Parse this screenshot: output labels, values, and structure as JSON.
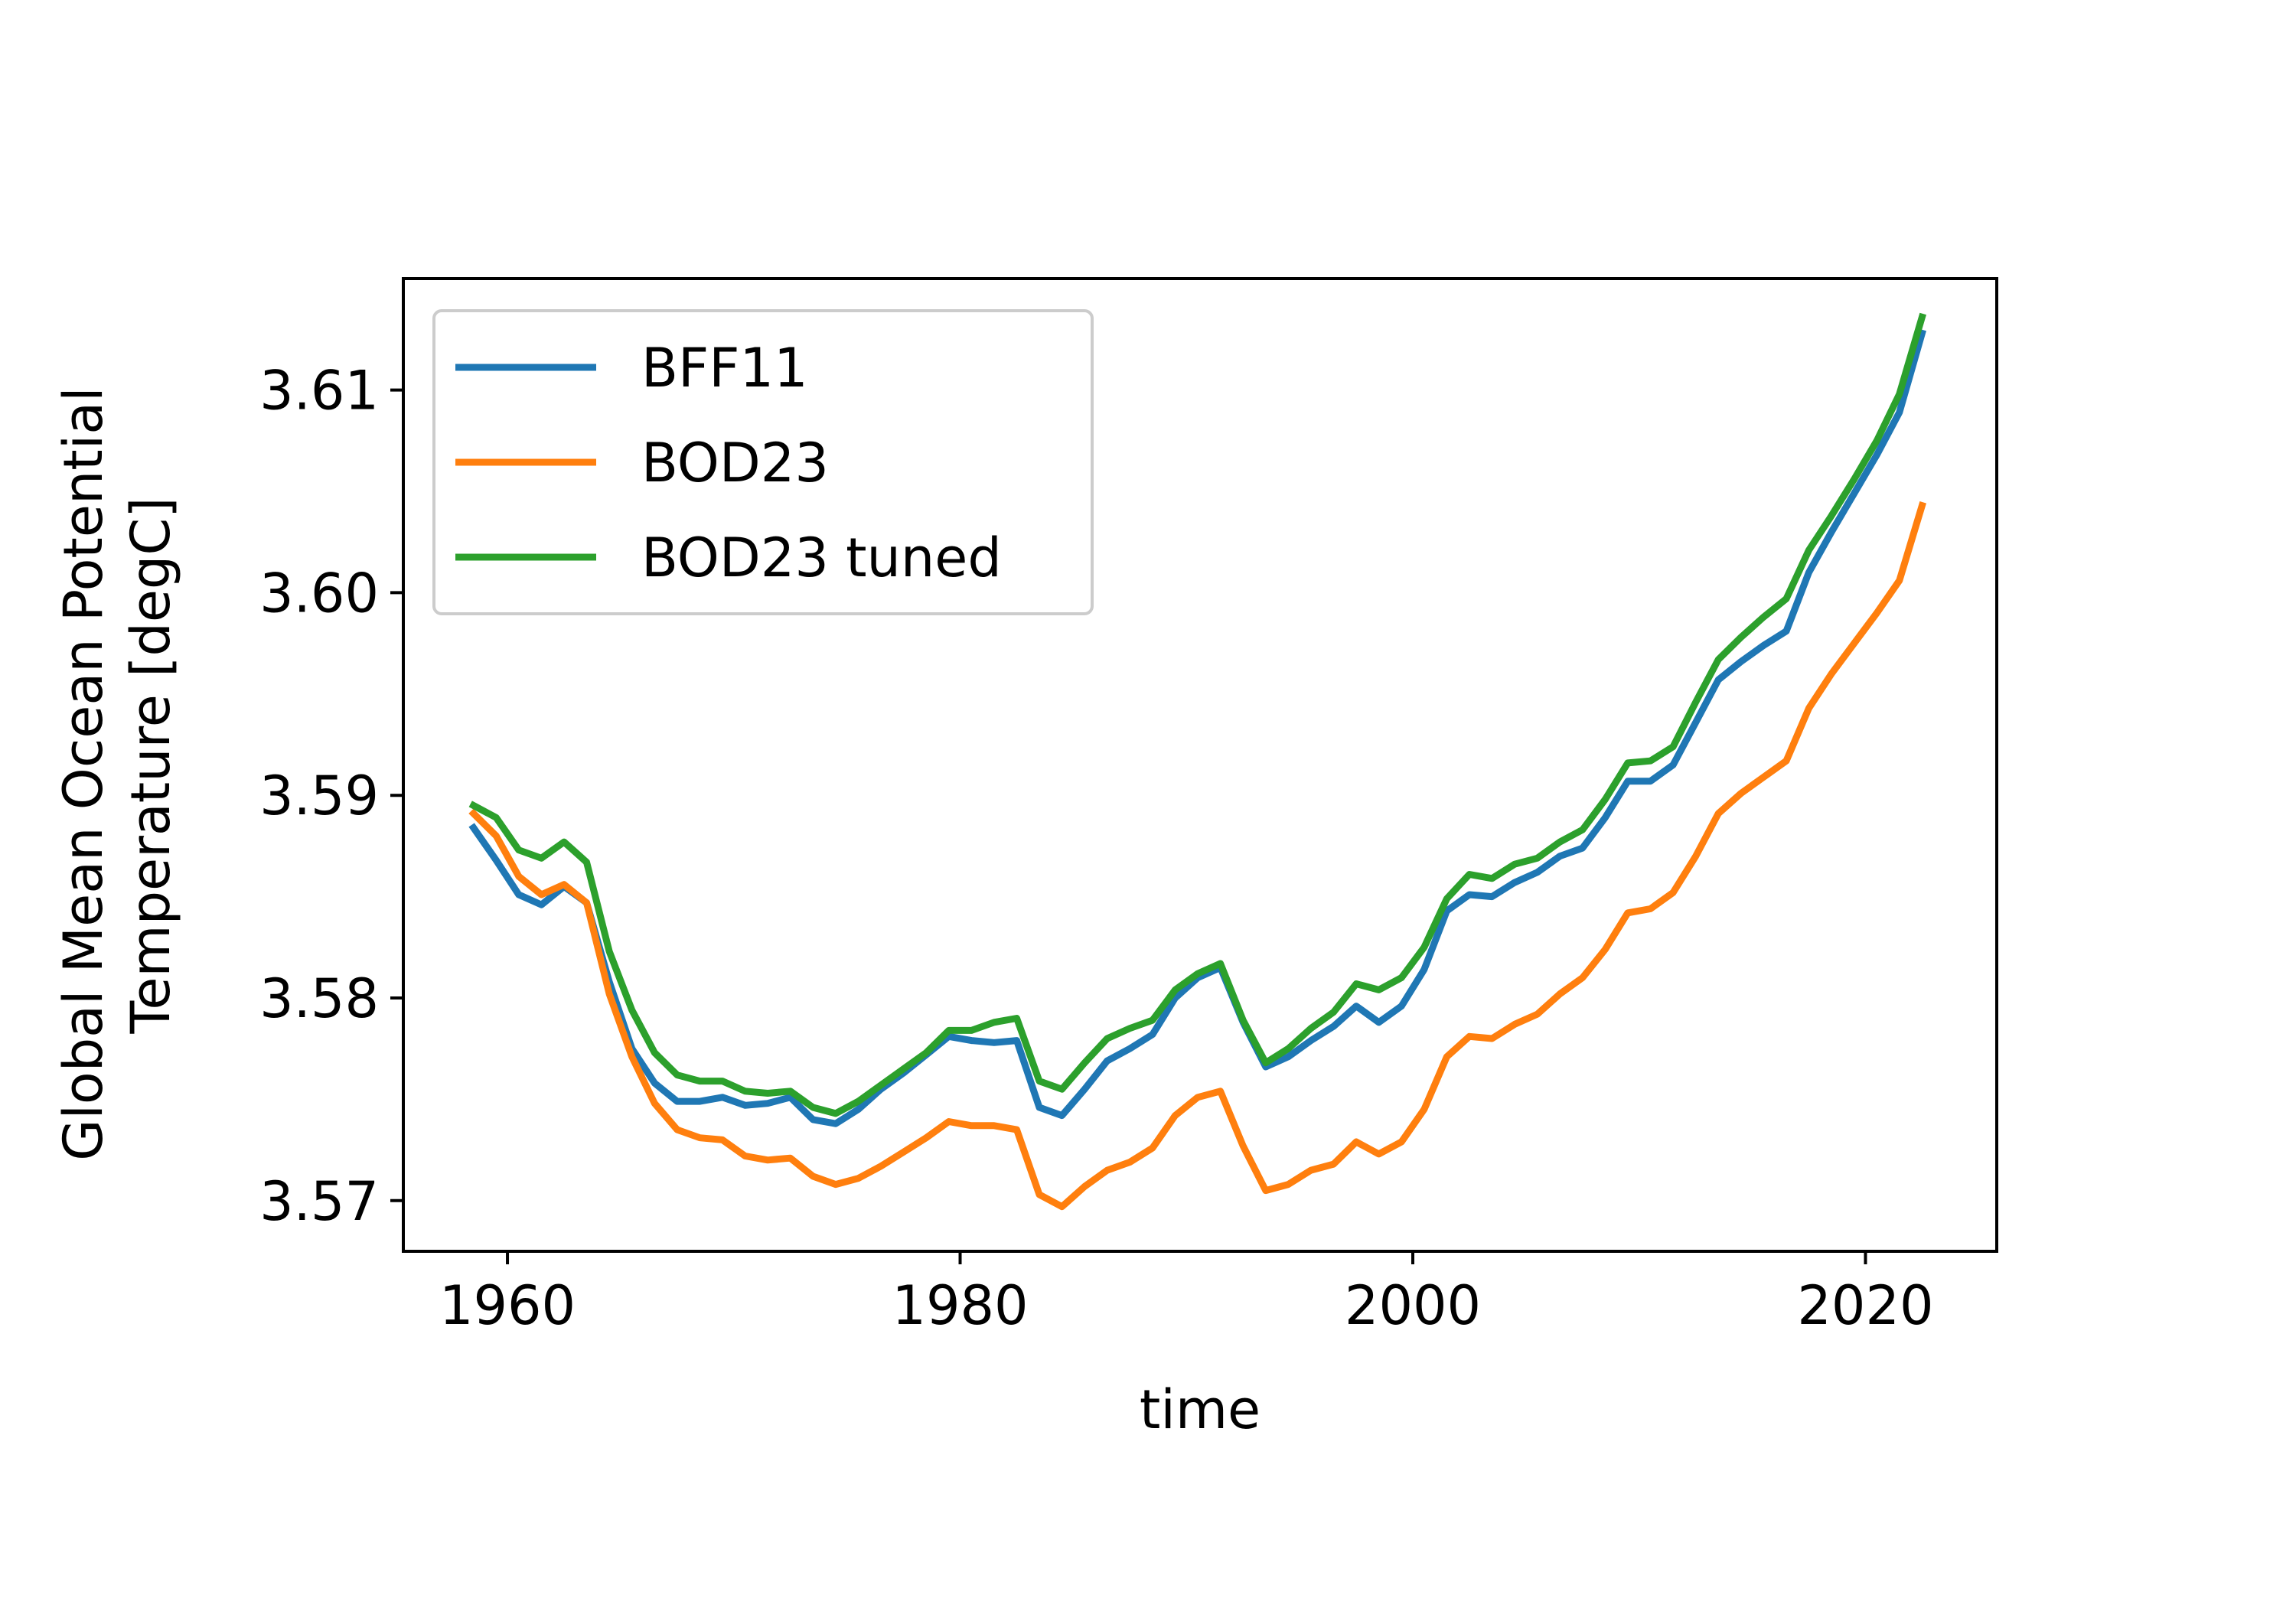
{
  "chart_data": {
    "type": "line",
    "title": "",
    "xlabel": "time",
    "ylabel_lines": [
      "Global Mean Ocean Potential",
      "Temperature [degC]"
    ],
    "xlim": [
      1955.4,
      2025.8
    ],
    "ylim": [
      3.5675,
      3.6155
    ],
    "xticks": [
      1960,
      1980,
      2000,
      2020
    ],
    "xtick_labels": [
      "1960",
      "1980",
      "2000",
      "2020"
    ],
    "yticks": [
      3.57,
      3.58,
      3.59,
      3.6,
      3.61
    ],
    "ytick_labels": [
      "3.57",
      "3.58",
      "3.59",
      "3.60",
      "3.61"
    ],
    "grid": false,
    "legend_position": "upper-left",
    "x": [
      1958.5,
      1959.5,
      1960.5,
      1961.5,
      1962.5,
      1963.5,
      1964.5,
      1965.5,
      1966.5,
      1967.5,
      1968.5,
      1969.5,
      1970.5,
      1971.5,
      1972.5,
      1973.5,
      1974.5,
      1975.5,
      1976.5,
      1977.5,
      1978.5,
      1979.5,
      1980.5,
      1981.5,
      1982.5,
      1983.5,
      1984.5,
      1985.5,
      1986.5,
      1987.5,
      1988.5,
      1989.5,
      1990.5,
      1991.5,
      1992.5,
      1993.5,
      1994.5,
      1995.5,
      1996.5,
      1997.5,
      1998.5,
      1999.5,
      2000.5,
      2001.5,
      2002.5,
      2003.5,
      2004.5,
      2005.5,
      2006.5,
      2007.5,
      2008.5,
      2009.5,
      2010.5,
      2011.5,
      2012.5,
      2013.5,
      2014.5,
      2015.5,
      2016.5,
      2017.5,
      2018.5,
      2019.5,
      2020.5,
      2021.5,
      2022.5
    ],
    "series": [
      {
        "name": "BFF11",
        "color": "#1f77b4",
        "values": [
          3.5884,
          3.5868,
          3.5851,
          3.5846,
          3.5855,
          3.5847,
          3.5808,
          3.5775,
          3.5758,
          3.5749,
          3.5749,
          3.5751,
          3.5747,
          3.5748,
          3.5751,
          3.574,
          3.5738,
          3.5745,
          3.5755,
          3.5763,
          3.5772,
          3.5781,
          3.5779,
          3.5778,
          3.5779,
          3.5746,
          3.5742,
          3.5755,
          3.5769,
          3.5775,
          3.5782,
          3.58,
          3.581,
          3.5815,
          3.5788,
          3.5766,
          3.5771,
          3.5779,
          3.5786,
          3.5796,
          3.5788,
          3.5796,
          3.5814,
          3.5843,
          3.5851,
          3.585,
          3.5857,
          3.5862,
          3.587,
          3.5874,
          3.5889,
          3.5907,
          3.5907,
          3.5915,
          3.5936,
          3.5957,
          3.5966,
          3.5974,
          3.5981,
          3.601,
          3.603,
          3.6049,
          3.6068,
          3.6089,
          3.6128
        ]
      },
      {
        "name": "BOD23",
        "color": "#ff7f0e",
        "values": [
          3.5891,
          3.588,
          3.586,
          3.5851,
          3.5856,
          3.5847,
          3.5802,
          3.5771,
          3.5748,
          3.5735,
          3.5731,
          3.573,
          3.5722,
          3.572,
          3.5721,
          3.5712,
          3.5708,
          3.5711,
          3.5717,
          3.5724,
          3.5731,
          3.5739,
          3.5737,
          3.5737,
          3.5735,
          3.5703,
          3.5697,
          3.5707,
          3.5715,
          3.5719,
          3.5726,
          3.5742,
          3.5751,
          3.5754,
          3.5727,
          3.5705,
          3.5708,
          3.5715,
          3.5718,
          3.5729,
          3.5723,
          3.5729,
          3.5745,
          3.5771,
          3.5781,
          3.578,
          3.5787,
          3.5792,
          3.5802,
          3.581,
          3.5824,
          3.5842,
          3.5844,
          3.5852,
          3.587,
          3.5891,
          3.5901,
          3.5909,
          3.5917,
          3.5943,
          3.596,
          3.5975,
          3.599,
          3.6006,
          3.6043
        ]
      },
      {
        "name": "BOD23 tuned",
        "color": "#2ca02c",
        "values": [
          3.5895,
          3.5889,
          3.5873,
          3.5869,
          3.5877,
          3.5867,
          3.5823,
          3.5794,
          3.5773,
          3.5762,
          3.5759,
          3.5759,
          3.5754,
          3.5753,
          3.5754,
          3.5746,
          3.5743,
          3.5749,
          3.5757,
          3.5765,
          3.5773,
          3.5784,
          3.5784,
          3.5788,
          3.579,
          3.5759,
          3.5755,
          3.5768,
          3.578,
          3.5785,
          3.5789,
          3.5804,
          3.5812,
          3.5817,
          3.5789,
          3.5768,
          3.5775,
          3.5785,
          3.5793,
          3.5807,
          3.5804,
          3.581,
          3.5825,
          3.5849,
          3.5861,
          3.5859,
          3.5866,
          3.5869,
          3.5877,
          3.5883,
          3.5898,
          3.5916,
          3.5917,
          3.5924,
          3.5946,
          3.5967,
          3.5978,
          3.5988,
          3.5997,
          3.6021,
          3.6038,
          3.6056,
          3.6075,
          3.6098,
          3.6136
        ]
      }
    ]
  }
}
